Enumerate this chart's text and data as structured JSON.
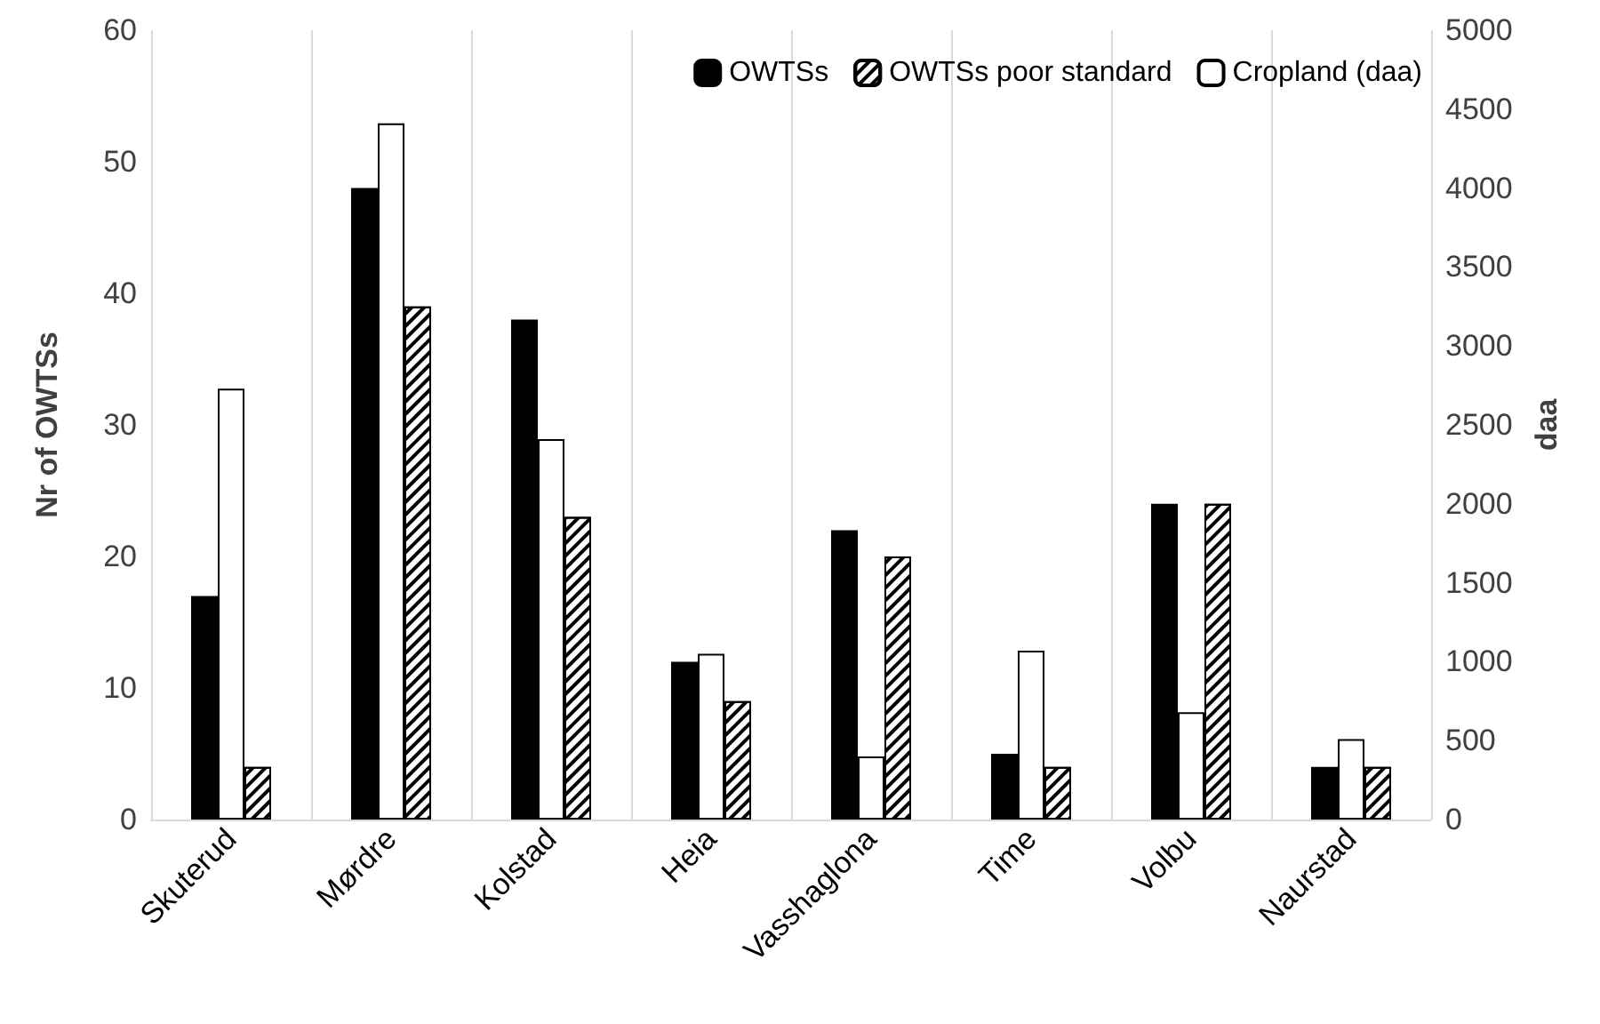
{
  "chart_data": {
    "type": "bar",
    "ylabel": "Nr of OWTSs",
    "y2label": "daa",
    "categories": [
      "Skuterud",
      "Mørdre",
      "Kolstad",
      "Heia",
      "Vasshaglona",
      "Time",
      "Volbu",
      "Naurstad"
    ],
    "series": [
      {
        "name": "OWTSs",
        "color": "#000000",
        "values": [
          17,
          48,
          38,
          12,
          22,
          5,
          24,
          4
        ]
      },
      {
        "name": "Cropland (daa)",
        "color": "#ffffff",
        "axis": "y2",
        "values": [
          2730,
          4410,
          2410,
          1050,
          400,
          1070,
          680,
          510
        ]
      },
      {
        "name": "OWTSs poor standard",
        "color": "#000000",
        "values": [
          4,
          39,
          23,
          9,
          20,
          4,
          24,
          4
        ]
      }
    ],
    "ylim": [
      0,
      60
    ],
    "yticks": [
      0,
      10,
      20,
      30,
      40,
      50,
      60
    ],
    "y2lim": [
      0,
      5000
    ],
    "y2ticks": [
      0,
      500,
      1000,
      1500,
      2000,
      2500,
      3000,
      3500,
      4000,
      4500,
      5000
    ],
    "grid": "x",
    "legend": "top right"
  }
}
